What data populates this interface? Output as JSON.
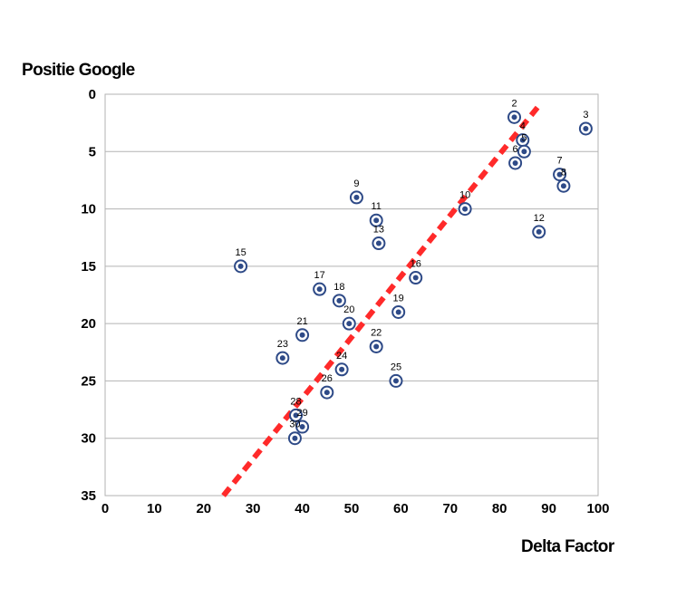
{
  "chart_data": {
    "type": "scatter",
    "xlabel": "Delta Factor",
    "ylabel": "Positie Google",
    "xlim": [
      0,
      100
    ],
    "ylim": [
      0,
      35
    ],
    "y_inverted": true,
    "x_ticks": [
      0,
      10,
      20,
      30,
      40,
      50,
      60,
      70,
      80,
      90,
      100
    ],
    "y_ticks": [
      0,
      5,
      10,
      15,
      20,
      25,
      30,
      35
    ],
    "grid": "horizontal",
    "marker_color": "#2e4a87",
    "trendline": {
      "style": "dashed",
      "color": "#ff2a2a",
      "from": [
        24,
        35
      ],
      "to": [
        88,
        1
      ]
    },
    "points": [
      {
        "label": "2",
        "x": 83,
        "y": 2
      },
      {
        "label": "3",
        "x": 97.5,
        "y": 3
      },
      {
        "label": "4",
        "x": 84.7,
        "y": 4
      },
      {
        "label": "5",
        "x": 85,
        "y": 5
      },
      {
        "label": "6",
        "x": 83.2,
        "y": 6
      },
      {
        "label": "7",
        "x": 92.2,
        "y": 7
      },
      {
        "label": "8",
        "x": 93,
        "y": 8
      },
      {
        "label": "9",
        "x": 51,
        "y": 9
      },
      {
        "label": "10",
        "x": 73,
        "y": 10
      },
      {
        "label": "11",
        "x": 55,
        "y": 11
      },
      {
        "label": "12",
        "x": 88,
        "y": 12
      },
      {
        "label": "13",
        "x": 55.5,
        "y": 13
      },
      {
        "label": "15",
        "x": 27.5,
        "y": 15
      },
      {
        "label": "16",
        "x": 63,
        "y": 16
      },
      {
        "label": "17",
        "x": 43.5,
        "y": 17
      },
      {
        "label": "18",
        "x": 47.5,
        "y": 18
      },
      {
        "label": "19",
        "x": 59.5,
        "y": 19
      },
      {
        "label": "20",
        "x": 49.5,
        "y": 20
      },
      {
        "label": "21",
        "x": 40,
        "y": 21
      },
      {
        "label": "22",
        "x": 55,
        "y": 22
      },
      {
        "label": "23",
        "x": 36,
        "y": 23
      },
      {
        "label": "24",
        "x": 48,
        "y": 24
      },
      {
        "label": "25",
        "x": 59,
        "y": 25
      },
      {
        "label": "26",
        "x": 45,
        "y": 26
      },
      {
        "label": "28",
        "x": 38.7,
        "y": 28
      },
      {
        "label": "29",
        "x": 40,
        "y": 29
      },
      {
        "label": "30",
        "x": 38.5,
        "y": 30
      }
    ]
  }
}
